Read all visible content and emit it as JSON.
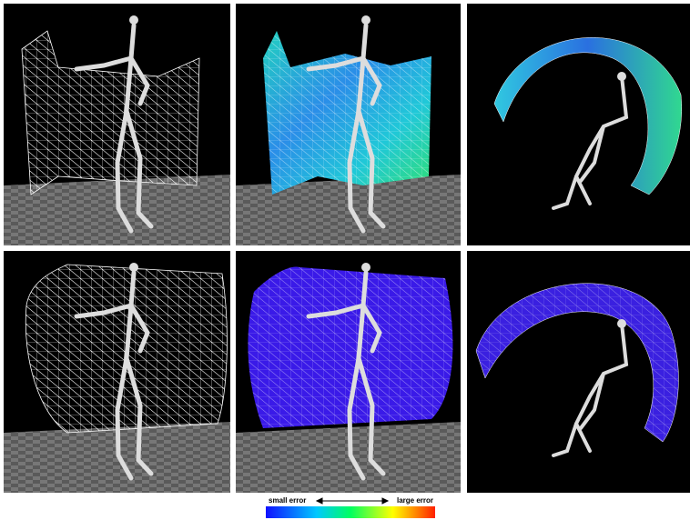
{
  "colorbar": {
    "low_label": "small error",
    "high_label": "large error"
  }
}
